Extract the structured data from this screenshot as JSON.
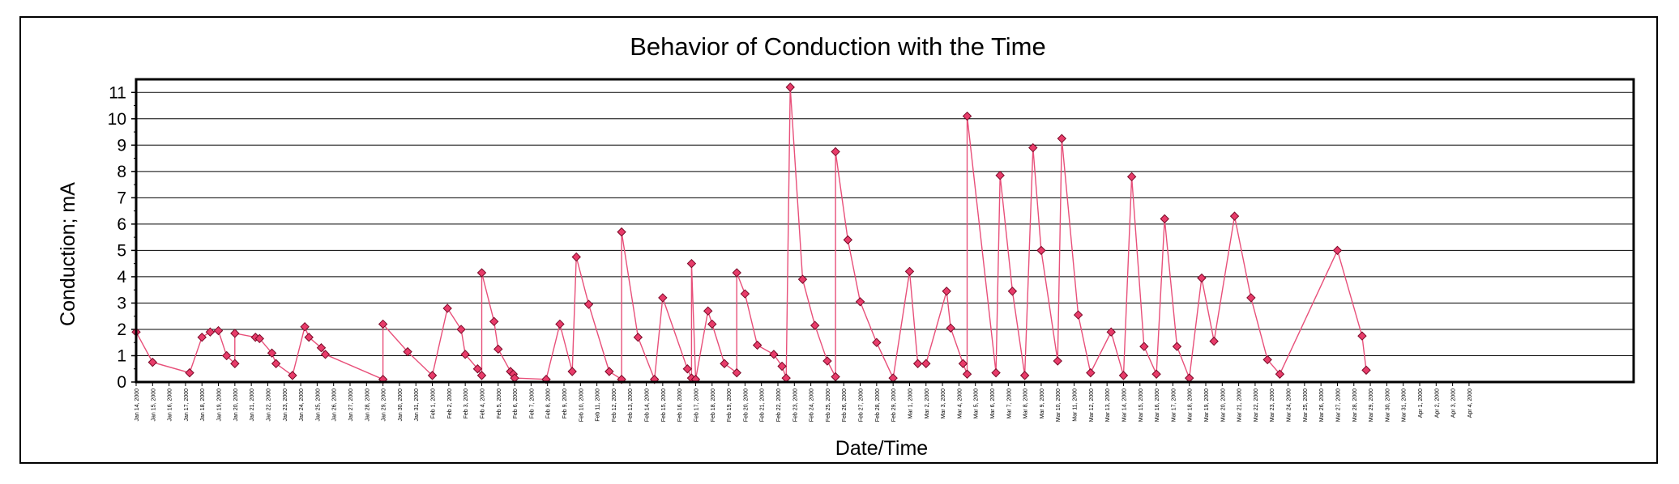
{
  "chart_data": {
    "type": "line",
    "title": "Behavior of Conduction with the Time",
    "xlabel": "Date/Time",
    "ylabel": "Conduction; mA",
    "ylim": [
      0,
      11.5
    ],
    "yticks": [
      0,
      1,
      2,
      3,
      4,
      5,
      6,
      7,
      8,
      9,
      10,
      11
    ],
    "xlim": [
      "2000-01-14",
      "2000-04-14"
    ],
    "xtick_labels": [
      "Jan 14, 2000",
      "Jan 15, 2000",
      "Jan 16, 2000",
      "Jan 17, 2000",
      "Jan 18, 2000",
      "Jan 19, 2000",
      "Jan 20, 2000",
      "Jan 21, 2000",
      "Jan 22, 2000",
      "Jan 23, 2000",
      "Jan 24, 2000",
      "Jan 25, 2000",
      "Jan 26, 2000",
      "Jan 27, 2000",
      "Jan 28, 2000",
      "Jan 29, 2000",
      "Jan 30, 2000",
      "Jan 31, 2000",
      "Feb 1, 2000",
      "Feb 2, 2000",
      "Feb 3, 2000",
      "Feb 4, 2000",
      "Feb 5, 2000",
      "Feb 6, 2000",
      "Feb 7, 2000",
      "Feb 8, 2000",
      "Feb 9, 2000",
      "Feb 10, 2000",
      "Feb 11, 2000",
      "Feb 12, 2000",
      "Feb 13, 2000",
      "Feb 14, 2000",
      "Feb 15, 2000",
      "Feb 16, 2000",
      "Feb 17, 2000",
      "Feb 18, 2000",
      "Feb 19, 2000",
      "Feb 20, 2000",
      "Feb 21, 2000",
      "Feb 22, 2000",
      "Feb 23, 2000",
      "Feb 24, 2000",
      "Feb 25, 2000",
      "Feb 26, 2000",
      "Feb 27, 2000",
      "Feb 28, 2000",
      "Feb 29, 2000",
      "Mar 1, 2000",
      "Mar 2, 2000",
      "Mar 3, 2000",
      "Mar 4, 2000",
      "Mar 5, 2000",
      "Mar 6, 2000",
      "Mar 7, 2000",
      "Mar 8, 2000",
      "Mar 9, 2000",
      "Mar 10, 2000",
      "Mar 11, 2000",
      "Mar 12, 2000",
      "Mar 13, 2000",
      "Mar 14, 2000",
      "Mar 15, 2000",
      "Mar 16, 2000",
      "Mar 17, 2000",
      "Mar 18, 2000",
      "Mar 19, 2000",
      "Mar 20, 2000",
      "Mar 21, 2000",
      "Mar 22, 2000",
      "Mar 23, 2000",
      "Mar 24, 2000",
      "Mar 25, 2000",
      "Mar 26, 2000",
      "Mar 27, 2000",
      "Mar 28, 2000",
      "Mar 29, 2000",
      "Mar 30, 2000",
      "Mar 31, 2000",
      "Apr 1, 2000",
      "Apr 2, 2000",
      "Apr 3, 2000",
      "Apr 4, 2000"
    ],
    "grid": true,
    "legend": "none",
    "colors": {
      "line": "#e8507a",
      "marker_fill": "#e83c6a",
      "marker_stroke": "#7a0a28",
      "grid": "#000000",
      "axis": "#000000"
    },
    "series": [
      {
        "marker": "diamond",
        "points": [
          [
            "2000-01-14T00:00",
            1.9
          ],
          [
            "2000-01-15T00:00",
            0.75
          ],
          [
            "2000-01-17T06:00",
            0.35
          ],
          [
            "2000-01-18T00:00",
            1.7
          ],
          [
            "2000-01-18T12:00",
            1.9
          ],
          [
            "2000-01-19T00:00",
            1.95
          ],
          [
            "2000-01-19T12:00",
            1.0
          ],
          [
            "2000-01-20T00:00",
            0.7
          ],
          [
            "2000-01-20T00:00",
            1.85
          ],
          [
            "2000-01-21T06:00",
            1.7
          ],
          [
            "2000-01-21T12:00",
            1.65
          ],
          [
            "2000-01-22T06:00",
            1.1
          ],
          [
            "2000-01-22T12:00",
            0.7
          ],
          [
            "2000-01-23T12:00",
            0.25
          ],
          [
            "2000-01-24T06:00",
            2.1
          ],
          [
            "2000-01-24T12:00",
            1.7
          ],
          [
            "2000-01-25T06:00",
            1.3
          ],
          [
            "2000-01-25T12:00",
            1.05
          ],
          [
            "2000-01-29T00:00",
            0.1
          ],
          [
            "2000-01-29T00:00",
            2.2
          ],
          [
            "2000-01-30T12:00",
            1.15
          ],
          [
            "2000-02-01T00:00",
            0.25
          ],
          [
            "2000-02-01T22:00",
            2.8
          ],
          [
            "2000-02-02T18:00",
            2.0
          ],
          [
            "2000-02-03T00:00",
            1.05
          ],
          [
            "2000-02-03T18:00",
            0.5
          ],
          [
            "2000-02-04T00:00",
            0.25
          ],
          [
            "2000-02-04T00:00",
            4.15
          ],
          [
            "2000-02-04T18:00",
            2.3
          ],
          [
            "2000-02-05T00:00",
            1.25
          ],
          [
            "2000-02-05T18:00",
            0.4
          ],
          [
            "2000-02-05T22:00",
            0.3
          ],
          [
            "2000-02-06T00:00",
            0.15
          ],
          [
            "2000-02-07T22:00",
            0.1
          ],
          [
            "2000-02-08T18:00",
            2.2
          ],
          [
            "2000-02-09T12:00",
            0.4
          ],
          [
            "2000-02-09T18:00",
            4.75
          ],
          [
            "2000-02-10T12:00",
            2.95
          ],
          [
            "2000-02-11T18:00",
            0.4
          ],
          [
            "2000-02-12T12:00",
            0.1
          ],
          [
            "2000-02-12T12:00",
            5.7
          ],
          [
            "2000-02-13T12:00",
            1.7
          ],
          [
            "2000-02-14T12:00",
            0.1
          ],
          [
            "2000-02-15T00:00",
            3.2
          ],
          [
            "2000-02-16T12:00",
            0.5
          ],
          [
            "2000-02-16T18:00",
            0.15
          ],
          [
            "2000-02-16T18:00",
            4.5
          ],
          [
            "2000-02-17T00:00",
            0.1
          ],
          [
            "2000-02-17T18:00",
            2.7
          ],
          [
            "2000-02-18T00:00",
            2.2
          ],
          [
            "2000-02-18T18:00",
            0.7
          ],
          [
            "2000-02-19T12:00",
            0.35
          ],
          [
            "2000-02-19T12:00",
            4.15
          ],
          [
            "2000-02-20T00:00",
            3.35
          ],
          [
            "2000-02-20T18:00",
            1.4
          ],
          [
            "2000-02-21T18:00",
            1.05
          ],
          [
            "2000-02-22T06:00",
            0.6
          ],
          [
            "2000-02-22T12:00",
            0.15
          ],
          [
            "2000-02-22T18:00",
            11.2
          ],
          [
            "2000-02-23T12:00",
            3.9
          ],
          [
            "2000-02-24T06:00",
            2.15
          ],
          [
            "2000-02-25T00:00",
            0.8
          ],
          [
            "2000-02-25T12:00",
            0.2
          ],
          [
            "2000-02-25T12:00",
            8.75
          ],
          [
            "2000-02-26T06:00",
            5.4
          ],
          [
            "2000-02-27T00:00",
            3.05
          ],
          [
            "2000-02-28T00:00",
            1.5
          ],
          [
            "2000-02-29T00:00",
            0.15
          ],
          [
            "2000-03-01T00:00",
            4.2
          ],
          [
            "2000-03-01T12:00",
            0.7
          ],
          [
            "2000-03-02T00:00",
            0.7
          ],
          [
            "2000-03-03T06:00",
            3.45
          ],
          [
            "2000-03-03T12:00",
            2.05
          ],
          [
            "2000-03-04T06:00",
            0.7
          ],
          [
            "2000-03-04T12:00",
            0.3
          ],
          [
            "2000-03-04T12:00",
            10.1
          ],
          [
            "2000-03-06T06:00",
            0.35
          ],
          [
            "2000-03-06T12:00",
            7.85
          ],
          [
            "2000-03-07T06:00",
            3.45
          ],
          [
            "2000-03-08T00:00",
            0.25
          ],
          [
            "2000-03-08T12:00",
            8.9
          ],
          [
            "2000-03-09T00:00",
            5.0
          ],
          [
            "2000-03-10T00:00",
            0.8
          ],
          [
            "2000-03-10T06:00",
            9.25
          ],
          [
            "2000-03-11T06:00",
            2.55
          ],
          [
            "2000-03-12T00:00",
            0.35
          ],
          [
            "2000-03-13T06:00",
            1.9
          ],
          [
            "2000-03-14T00:00",
            0.25
          ],
          [
            "2000-03-14T12:00",
            7.8
          ],
          [
            "2000-03-15T06:00",
            1.35
          ],
          [
            "2000-03-16T00:00",
            0.3
          ],
          [
            "2000-03-16T12:00",
            6.2
          ],
          [
            "2000-03-17T06:00",
            1.35
          ],
          [
            "2000-03-18T00:00",
            0.15
          ],
          [
            "2000-03-18T18:00",
            3.95
          ],
          [
            "2000-03-19T12:00",
            1.55
          ],
          [
            "2000-03-20T18:00",
            6.3
          ],
          [
            "2000-03-21T18:00",
            3.2
          ],
          [
            "2000-03-22T18:00",
            0.85
          ],
          [
            "2000-03-23T12:00",
            0.3
          ],
          [
            "2000-03-27T00:00",
            5.0
          ],
          [
            "2000-03-28T12:00",
            1.75
          ],
          [
            "2000-03-28T18:00",
            0.45
          ]
        ]
      }
    ]
  }
}
